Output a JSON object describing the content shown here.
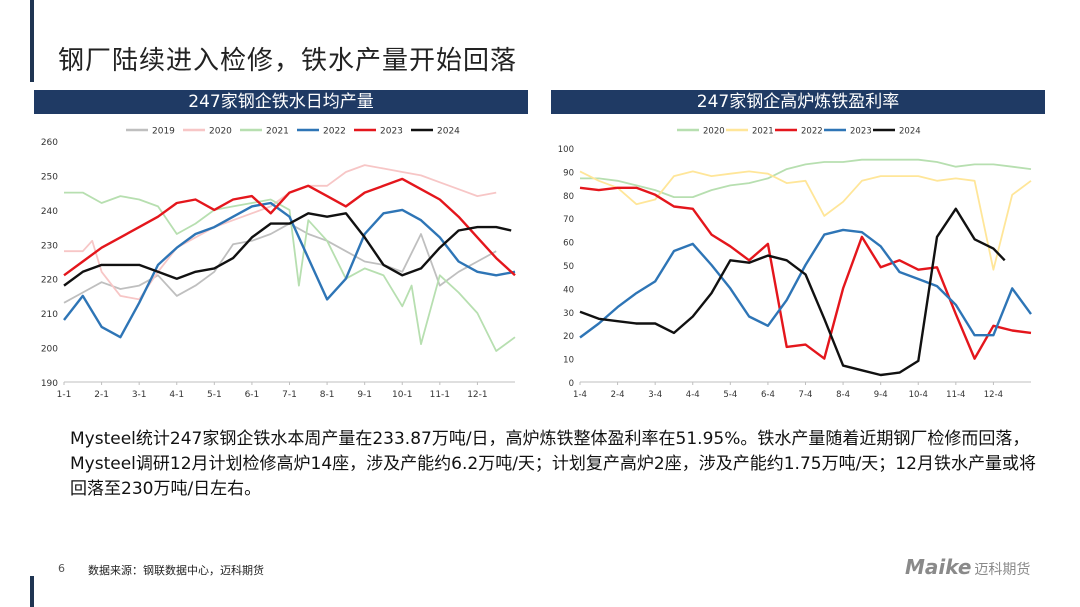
{
  "header": {
    "title": "钢厂陆续进入检修，铁水产量开始回落"
  },
  "summary": "Mysteel统计247家钢企铁水本周产量在233.87万吨/日，高炉炼铁整体盈利率在51.95%。铁水产量随着近期钢厂检修而回落，Mysteel调研12月计划检修高炉14座，涉及产能约6.2万吨/天；计划复产高炉2座，涉及产能约1.75万吨/天；12月铁水产量或将回落至230万吨/日左右。",
  "footer": {
    "page": "6",
    "source": "数据来源：钢联数据中心，迈科期货",
    "logo_brand": "Maike",
    "logo_cn": "迈科期货"
  },
  "chart_data": [
    {
      "type": "line",
      "title": "247家钢企铁水日均产量",
      "x_labels": [
        "1-1",
        "2-1",
        "3-1",
        "4-1",
        "5-1",
        "6-1",
        "7-1",
        "8-1",
        "9-1",
        "10-1",
        "11-1",
        "12-1"
      ],
      "ylim": [
        190,
        260
      ],
      "yticks": [
        190,
        200,
        210,
        220,
        230,
        240,
        250,
        260
      ],
      "legend_position": "top",
      "series": [
        {
          "name": "2019",
          "color": "#bfbfbf",
          "x": [
            0,
            0.5,
            1,
            1.5,
            2,
            2.5,
            3,
            3.5,
            4,
            4.5,
            5,
            5.5,
            6,
            6.5,
            7,
            7.5,
            8,
            8.5,
            9,
            9.5,
            10,
            10.5,
            11,
            11.5
          ],
          "y": [
            213,
            216,
            219,
            217,
            218,
            221,
            215,
            218,
            222,
            230,
            231,
            233,
            236,
            233,
            231,
            228,
            225,
            224,
            222,
            233,
            218,
            222,
            225,
            228
          ]
        },
        {
          "name": "2020",
          "color": "#f7c6c6",
          "x": [
            0,
            0.5,
            0.75,
            1,
            1.5,
            2,
            2.5,
            3,
            3.5,
            4,
            4.5,
            5,
            5.5,
            6,
            6.5,
            7,
            7.5,
            8,
            8.5,
            9,
            9.5,
            10,
            10.5,
            11,
            11.5
          ],
          "y": [
            228,
            228,
            231,
            222,
            215,
            214,
            222,
            229,
            232,
            235,
            237,
            239,
            241,
            245,
            247,
            247,
            251,
            253,
            252,
            251,
            250,
            248,
            246,
            244,
            245
          ]
        },
        {
          "name": "2021",
          "color": "#b7dfb0",
          "x": [
            0,
            0.5,
            1,
            1.5,
            2,
            2.5,
            3,
            3.5,
            4,
            4.5,
            5,
            5.5,
            6,
            6.25,
            6.5,
            7,
            7.5,
            8,
            8.5,
            9,
            9.25,
            9.5,
            10,
            10.5,
            11,
            11.5,
            12
          ],
          "y": [
            245,
            245,
            242,
            244,
            243,
            241,
            233,
            236,
            240,
            241,
            242,
            243,
            240,
            218,
            237,
            231,
            220,
            223,
            221,
            212,
            218,
            201,
            221,
            216,
            210,
            199,
            203
          ]
        },
        {
          "name": "2022",
          "color": "#2e75b6",
          "x": [
            0,
            0.5,
            1,
            1.5,
            2,
            2.5,
            3,
            3.5,
            4,
            4.5,
            5,
            5.5,
            6,
            6.5,
            7,
            7.5,
            8,
            8.5,
            9,
            9.5,
            10,
            10.5,
            11,
            11.5,
            12
          ],
          "y": [
            208,
            215,
            206,
            203,
            213,
            224,
            229,
            233,
            235,
            238,
            241,
            242,
            238,
            226,
            214,
            220,
            233,
            239,
            240,
            237,
            232,
            225,
            222,
            221,
            222
          ]
        },
        {
          "name": "2023",
          "color": "#e4161c",
          "x": [
            0,
            0.5,
            1,
            1.5,
            2,
            2.5,
            3,
            3.5,
            4,
            4.5,
            5,
            5.5,
            6,
            6.5,
            7,
            7.5,
            8,
            8.5,
            9,
            9.5,
            10,
            10.5,
            11,
            11.5,
            12
          ],
          "y": [
            221,
            225,
            229,
            232,
            235,
            238,
            242,
            243,
            240,
            243,
            244,
            239,
            245,
            247,
            244,
            241,
            245,
            247,
            249,
            246,
            243,
            238,
            232,
            226,
            221
          ]
        },
        {
          "name": "2024",
          "color": "#111111",
          "x": [
            0,
            0.5,
            1,
            1.5,
            2,
            2.5,
            3,
            3.5,
            4,
            4.5,
            5,
            5.5,
            6,
            6.5,
            7,
            7.5,
            8,
            8.5,
            9,
            9.5,
            10,
            10.5,
            11,
            11.5,
            11.9
          ],
          "y": [
            218,
            222,
            224,
            224,
            224,
            222,
            220,
            222,
            223,
            226,
            232,
            236,
            236,
            239,
            238,
            239,
            232,
            224,
            221,
            223,
            229,
            234,
            235,
            235,
            234
          ]
        }
      ]
    },
    {
      "type": "line",
      "title": "247家钢企高炉炼铁盈利率",
      "x_labels": [
        "1-4",
        "2-4",
        "3-4",
        "4-4",
        "5-4",
        "6-4",
        "7-4",
        "8-4",
        "9-4",
        "10-4",
        "11-4",
        "12-4"
      ],
      "ylim": [
        0,
        100
      ],
      "yticks": [
        0,
        10,
        20,
        30,
        40,
        50,
        60,
        70,
        80,
        90,
        100
      ],
      "legend_position": "top",
      "series": [
        {
          "name": "2020",
          "color": "#b7dfb0",
          "x": [
            0,
            0.5,
            1,
            1.5,
            2,
            2.5,
            3,
            3.5,
            4,
            4.5,
            5,
            5.5,
            6,
            6.5,
            7,
            7.5,
            8,
            8.5,
            9,
            9.5,
            10,
            10.5,
            11,
            11.5,
            12
          ],
          "y": [
            87,
            87,
            86,
            84,
            82,
            79,
            79,
            82,
            84,
            85,
            87,
            91,
            93,
            94,
            94,
            95,
            95,
            95,
            95,
            94,
            92,
            93,
            93,
            92,
            91
          ]
        },
        {
          "name": "2021",
          "color": "#ffe699",
          "x": [
            0,
            0.5,
            1,
            1.5,
            2,
            2.5,
            3,
            3.5,
            4,
            4.5,
            5,
            5.5,
            6,
            6.5,
            7,
            7.5,
            8,
            8.5,
            9,
            9.5,
            10,
            10.5,
            11,
            11.5,
            12
          ],
          "y": [
            90,
            86,
            83,
            76,
            78,
            88,
            90,
            88,
            89,
            90,
            89,
            85,
            86,
            71,
            77,
            86,
            88,
            88,
            88,
            86,
            87,
            86,
            48,
            80,
            86
          ]
        },
        {
          "name": "2022",
          "color": "#e4161c",
          "x": [
            0,
            0.5,
            1,
            1.5,
            2,
            2.5,
            3,
            3.5,
            4,
            4.5,
            5,
            5.5,
            6,
            6.5,
            7,
            7.5,
            8,
            8.5,
            9,
            9.5,
            10,
            10.5,
            11,
            11.5,
            12
          ],
          "y": [
            83,
            82,
            83,
            83,
            80,
            75,
            74,
            63,
            58,
            52,
            59,
            15,
            16,
            10,
            40,
            62,
            49,
            52,
            48,
            49,
            29,
            10,
            24,
            22,
            21
          ]
        },
        {
          "name": "2023",
          "color": "#2e75b6",
          "x": [
            0,
            0.5,
            1,
            1.5,
            2,
            2.5,
            3,
            3.5,
            4,
            4.5,
            5,
            5.5,
            6,
            6.5,
            7,
            7.5,
            8,
            8.5,
            9,
            9.5,
            10,
            10.5,
            11,
            11.5,
            12
          ],
          "y": [
            19,
            25,
            32,
            38,
            43,
            56,
            59,
            50,
            40,
            28,
            24,
            35,
            50,
            63,
            65,
            64,
            58,
            47,
            44,
            41,
            33,
            20,
            20,
            40,
            29
          ]
        },
        {
          "name": "2024",
          "color": "#111111",
          "x": [
            0,
            0.5,
            1,
            1.5,
            2,
            2.5,
            3,
            3.5,
            4,
            4.5,
            5,
            5.5,
            6,
            6.5,
            7,
            7.5,
            8,
            8.5,
            9,
            9.5,
            10,
            10.5,
            11,
            11.3
          ],
          "y": [
            30,
            27,
            26,
            25,
            25,
            21,
            28,
            38,
            52,
            51,
            54,
            52,
            46,
            27,
            7,
            5,
            3,
            4,
            9,
            62,
            74,
            61,
            57,
            52
          ]
        }
      ]
    }
  ]
}
